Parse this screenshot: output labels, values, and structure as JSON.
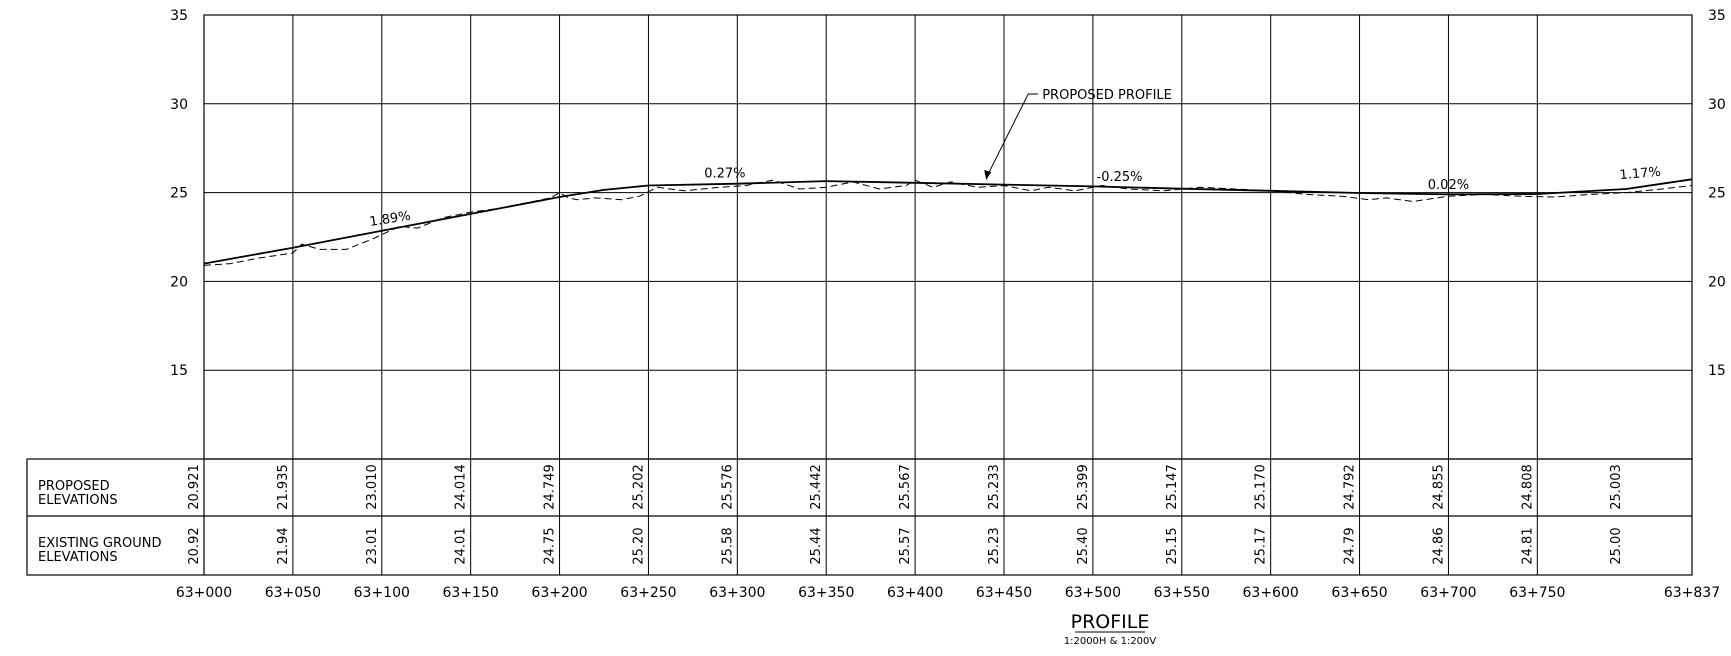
{
  "chart_data": {
    "type": "line",
    "ylim": [
      10,
      35
    ],
    "y_ticks": [
      "35",
      "30",
      "25",
      "20",
      "15"
    ],
    "x_range": [
      0,
      837
    ],
    "x_ticks": [
      {
        "ch": 0,
        "label": "63+000"
      },
      {
        "ch": 50,
        "label": "63+050"
      },
      {
        "ch": 100,
        "label": "63+100"
      },
      {
        "ch": 150,
        "label": "63+150"
      },
      {
        "ch": 200,
        "label": "63+200"
      },
      {
        "ch": 250,
        "label": "63+250"
      },
      {
        "ch": 300,
        "label": "63+300"
      },
      {
        "ch": 350,
        "label": "63+350"
      },
      {
        "ch": 400,
        "label": "63+400"
      },
      {
        "ch": 450,
        "label": "63+450"
      },
      {
        "ch": 500,
        "label": "63+500"
      },
      {
        "ch": 550,
        "label": "63+550"
      },
      {
        "ch": 600,
        "label": "63+600"
      },
      {
        "ch": 650,
        "label": "63+650"
      },
      {
        "ch": 700,
        "label": "63+700"
      },
      {
        "ch": 750,
        "label": "63+750"
      },
      {
        "ch": 837,
        "label": "63+837"
      }
    ],
    "series": [
      {
        "name": "PROPOSED PROFILE",
        "style": "solid",
        "x": [
          0,
          50,
          100,
          150,
          200,
          225,
          250,
          300,
          350,
          400,
          450,
          500,
          550,
          600,
          650,
          700,
          750,
          800,
          837
        ],
        "y": [
          21.0,
          21.9,
          22.85,
          23.8,
          24.75,
          25.15,
          25.4,
          25.5,
          25.65,
          25.55,
          25.45,
          25.35,
          25.22,
          25.1,
          24.98,
          24.9,
          24.92,
          25.2,
          25.75
        ]
      },
      {
        "name": "",
        "style": "dashed",
        "x": [
          0,
          15,
          30,
          50,
          55,
          65,
          80,
          95,
          110,
          120,
          135,
          150,
          165,
          180,
          195,
          200,
          205,
          210,
          220,
          235,
          245,
          255,
          270,
          290,
          305,
          320,
          335,
          350,
          365,
          380,
          395,
          400,
          410,
          420,
          435,
          450,
          465,
          475,
          490,
          505,
          520,
          540,
          560,
          580,
          600,
          620,
          640,
          655,
          665,
          680,
          700,
          720,
          740,
          760,
          780,
          800,
          820,
          837
        ],
        "y": [
          20.9,
          21.0,
          21.3,
          21.6,
          22.1,
          21.8,
          21.8,
          22.4,
          23.1,
          23.0,
          23.6,
          23.9,
          24.1,
          24.4,
          24.7,
          25.0,
          24.7,
          24.6,
          24.7,
          24.6,
          24.8,
          25.3,
          25.1,
          25.3,
          25.4,
          25.7,
          25.2,
          25.3,
          25.6,
          25.2,
          25.4,
          25.7,
          25.3,
          25.6,
          25.3,
          25.4,
          25.1,
          25.3,
          25.1,
          25.4,
          25.2,
          25.1,
          25.3,
          25.2,
          25.1,
          24.9,
          24.8,
          24.6,
          24.7,
          24.5,
          24.8,
          24.9,
          24.8,
          24.75,
          24.9,
          25.0,
          25.2,
          25.4
        ]
      }
    ],
    "grade_labels": [
      {
        "text": "1.89%",
        "ch": 105,
        "elev": 23.3,
        "angle": -9
      },
      {
        "text": "0.27%",
        "ch": 293,
        "elev": 25.85,
        "angle": 0
      },
      {
        "text": "-0.25%",
        "ch": 515,
        "elev": 25.65,
        "angle": 0
      },
      {
        "text": "0.02%",
        "ch": 700,
        "elev": 25.2,
        "angle": 0
      },
      {
        "text": "1.17%",
        "ch": 808,
        "elev": 25.85,
        "angle": -5
      }
    ],
    "callout": {
      "text": "PROPOSED PROFILE",
      "ch": 440,
      "elev": 25.6
    },
    "table": {
      "row_labels": [
        [
          "PROPOSED",
          "ELEVATIONS"
        ],
        [
          "EXISTING GROUND",
          "ELEVATIONS"
        ]
      ],
      "proposed": [
        "20.921",
        "21.935",
        "23.010",
        "24.014",
        "24.749",
        "25.202",
        "25.576",
        "25.442",
        "25.567",
        "25.233",
        "25.399",
        "25.147",
        "25.170",
        "24.792",
        "24.855",
        "24.808",
        "25.003"
      ],
      "existing": [
        "20.92",
        "21.94",
        "23.01",
        "24.01",
        "24.75",
        "25.20",
        "25.58",
        "25.44",
        "25.57",
        "25.23",
        "25.40",
        "25.15",
        "25.17",
        "24.79",
        "24.86",
        "24.81",
        "25.00"
      ]
    }
  },
  "title": "PROFILE",
  "subtitle": "1:2000H & 1:200V"
}
